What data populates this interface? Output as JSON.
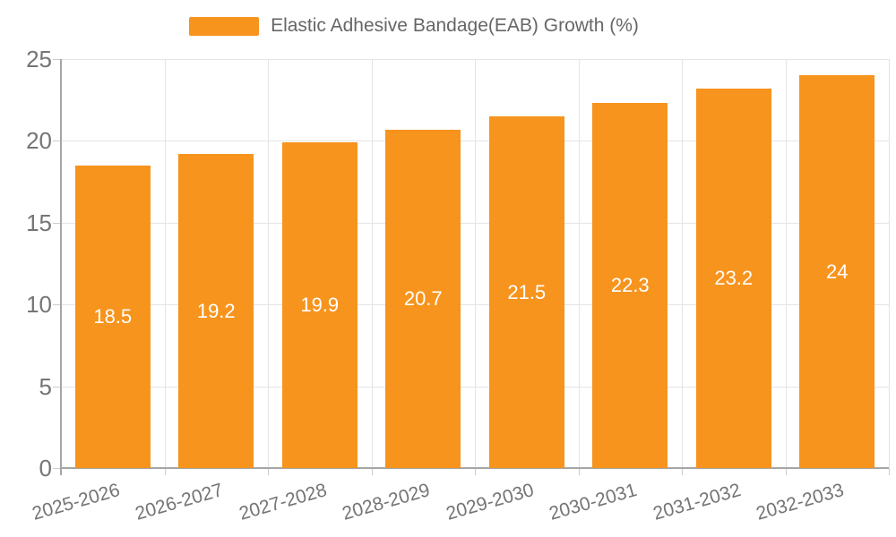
{
  "chart_data": {
    "type": "bar",
    "legend_label": "Elastic Adhesive Bandage(EAB) Growth (%)",
    "legend_position": "top",
    "categories": [
      "2025-2026",
      "2026-2027",
      "2027-2028",
      "2028-2029",
      "2029-2030",
      "2030-2031",
      "2031-2032",
      "2032-2033"
    ],
    "values": [
      18.5,
      19.2,
      19.9,
      20.7,
      21.5,
      22.3,
      23.2,
      24
    ],
    "value_labels": [
      "18.5",
      "19.2",
      "19.9",
      "20.7",
      "21.5",
      "22.3",
      "23.2",
      "24"
    ],
    "title": "",
    "xlabel": "",
    "ylabel": "",
    "ylim": [
      0,
      25
    ],
    "yticks": [
      0,
      5,
      10,
      15,
      20,
      25
    ],
    "grid": true,
    "colors": {
      "bar": "#f7941e",
      "grid": "#e4e4e4",
      "axis": "#a6a6a6",
      "tick": "#cccccc",
      "axis_text": "#757575",
      "legend_text": "#666666",
      "data_label": "#ffffff",
      "background": "#ffffff"
    }
  }
}
